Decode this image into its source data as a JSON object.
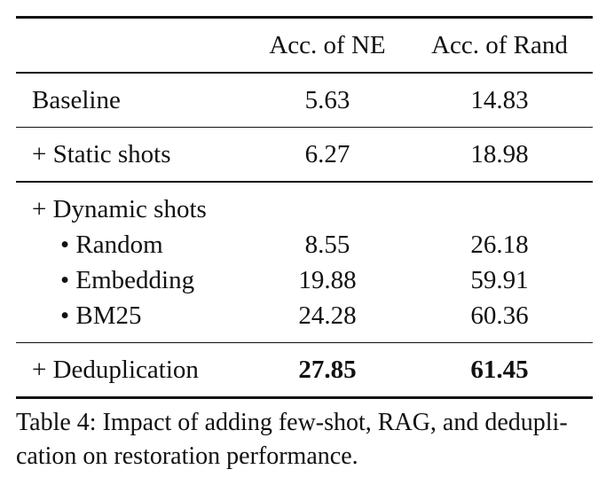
{
  "table": {
    "headers": {
      "col_label": "",
      "col_ne": "Acc. of NE",
      "col_rand": "Acc. of Rand"
    },
    "rows": [
      {
        "label": "Baseline",
        "ne": "5.63",
        "rand": "14.83"
      },
      {
        "label": "+ Static shots",
        "ne": "6.27",
        "rand": "18.98"
      },
      {
        "label": "+ Dynamic shots",
        "ne": "",
        "rand": ""
      },
      {
        "label": "• Random",
        "ne": "8.55",
        "rand": "26.18"
      },
      {
        "label": "• Embedding",
        "ne": "19.88",
        "rand": "59.91"
      },
      {
        "label": "• BM25",
        "ne": "24.28",
        "rand": "60.36"
      },
      {
        "label": "+ Deduplication",
        "ne": "27.85",
        "rand": "61.45"
      }
    ]
  },
  "caption": "Table 4: Impact of adding few-shot, RAG, and dedupli-cation on restoration performance.",
  "caption_lines": [
    "Table 4: Impact of adding few-shot, RAG, and dedupli-",
    "cation on restoration performance."
  ]
}
